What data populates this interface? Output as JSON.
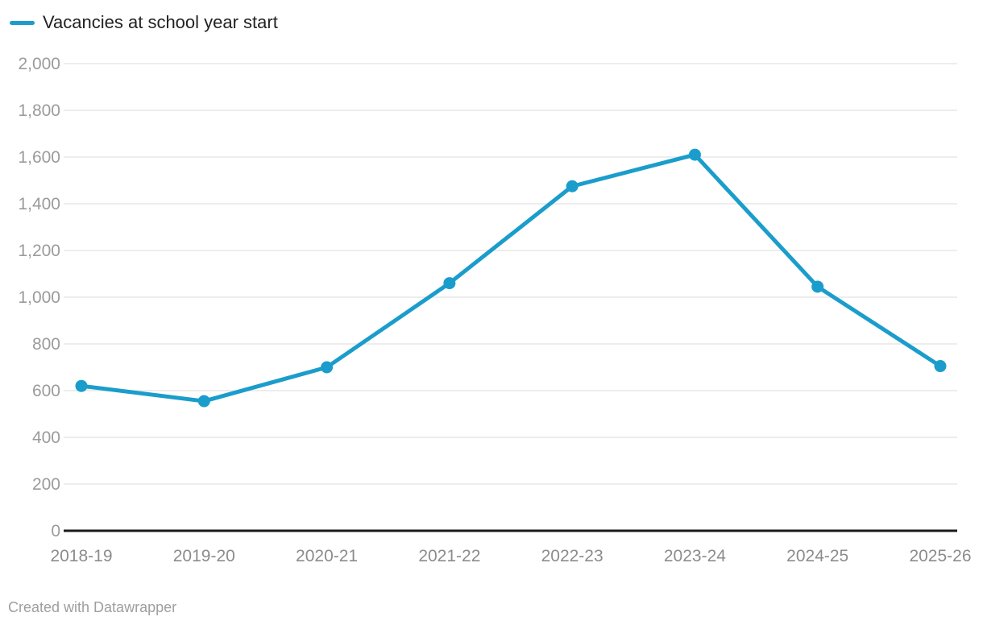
{
  "legend": {
    "series_label": "Vacancies at school year start"
  },
  "footer": {
    "attribution": "Created with Datawrapper"
  },
  "colors": {
    "series": "#1b9dcc",
    "grid": "#e7e7e7",
    "axis_line": "#1a1a1a",
    "y_tick_text": "#9b9b9b",
    "x_tick_text": "#8c8c8c",
    "legend_text": "#222222",
    "footer_text": "#9e9e9e"
  },
  "chart_data": {
    "type": "line",
    "categories": [
      "2018-19",
      "2019-20",
      "2020-21",
      "2021-22",
      "2022-23",
      "2023-24",
      "2024-25",
      "2025-26"
    ],
    "series": [
      {
        "name": "Vacancies at school year start",
        "values": [
          620,
          555,
          700,
          1060,
          1475,
          1610,
          1045,
          705
        ]
      }
    ],
    "xlabel": "",
    "ylabel": "",
    "ylim": [
      0,
      2000
    ],
    "y_tick_step": 200,
    "y_tick_labels": [
      "0",
      "200",
      "400",
      "600",
      "800",
      "1,000",
      "1,200",
      "1,400",
      "1,600",
      "1,800",
      "2,000"
    ],
    "grid": "horizontal",
    "legend_position": "top-left",
    "legend_entries": [
      "Vacancies at school year start"
    ],
    "attribution": "Created with Datawrapper"
  }
}
